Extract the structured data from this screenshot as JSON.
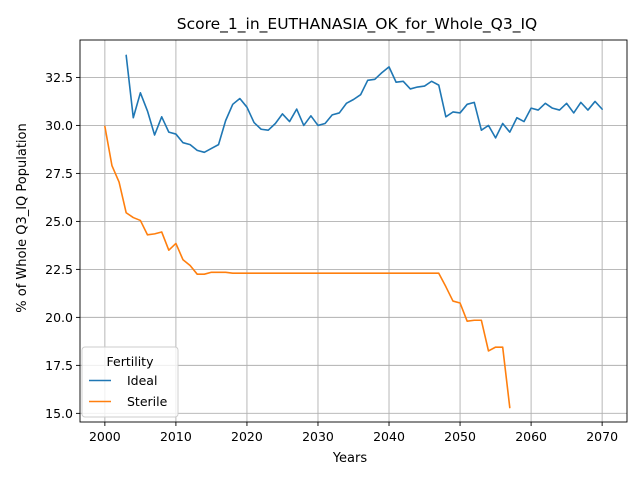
{
  "chart_data": {
    "type": "line",
    "title": "Score_1_in_EUTHANASIA_OK_for_Whole_Q3_IQ",
    "xlabel": "Years",
    "ylabel": "% of Whole Q3_IQ Population",
    "xlim": [
      1996.5,
      2073.5
    ],
    "ylim": [
      14.55,
      34.45
    ],
    "x_ticks": [
      2000,
      2010,
      2020,
      2030,
      2040,
      2050,
      2060,
      2070
    ],
    "y_ticks": [
      15.0,
      17.5,
      20.0,
      22.5,
      25.0,
      27.5,
      30.0,
      32.5
    ],
    "x_tick_labels": [
      "2000",
      "2010",
      "2020",
      "2030",
      "2040",
      "2050",
      "2060",
      "2070"
    ],
    "y_tick_labels": [
      "15.0",
      "17.5",
      "20.0",
      "22.5",
      "25.0",
      "27.5",
      "30.0",
      "32.5"
    ],
    "grid": true,
    "legend": {
      "title": "Fertility",
      "placement": "lower-left"
    },
    "series": [
      {
        "name": "Ideal",
        "color": "#1f77b4",
        "x": [
          2003,
          2004,
          2005,
          2006,
          2007,
          2008,
          2009,
          2010,
          2011,
          2012,
          2013,
          2014,
          2015,
          2016,
          2017,
          2018,
          2019,
          2020,
          2021,
          2022,
          2023,
          2024,
          2025,
          2026,
          2027,
          2028,
          2029,
          2030,
          2031,
          2032,
          2033,
          2034,
          2035,
          2036,
          2037,
          2038,
          2039,
          2040,
          2041,
          2042,
          2043,
          2044,
          2045,
          2046,
          2047,
          2048,
          2049,
          2050,
          2051,
          2052,
          2053,
          2054,
          2055,
          2056,
          2057,
          2058,
          2059,
          2060,
          2061,
          2062,
          2063,
          2064,
          2065,
          2066,
          2067,
          2068,
          2069,
          2070
        ],
        "y": [
          33.65,
          30.4,
          31.7,
          30.75,
          29.5,
          30.45,
          29.65,
          29.55,
          29.1,
          29.0,
          28.7,
          28.6,
          28.8,
          29.0,
          30.25,
          31.1,
          31.4,
          30.95,
          30.15,
          29.8,
          29.75,
          30.1,
          30.6,
          30.2,
          30.85,
          30.0,
          30.5,
          30.0,
          30.1,
          30.55,
          30.65,
          31.15,
          31.35,
          31.6,
          32.35,
          32.4,
          32.75,
          33.05,
          32.25,
          32.3,
          31.9,
          32.0,
          32.05,
          32.3,
          32.1,
          30.45,
          30.7,
          30.65,
          31.1,
          31.2,
          29.75,
          30.0,
          29.35,
          30.1,
          29.65,
          30.4,
          30.2,
          30.9,
          30.8,
          31.15,
          30.9,
          30.8,
          31.15,
          30.65,
          31.2,
          30.8,
          31.25,
          30.85
        ]
      },
      {
        "name": "Sterile",
        "color": "#ff7f0e",
        "x": [
          2000,
          2001,
          2002,
          2003,
          2004,
          2005,
          2006,
          2007,
          2008,
          2009,
          2010,
          2011,
          2012,
          2013,
          2014,
          2015,
          2016,
          2017,
          2018,
          2019,
          2020,
          2021,
          2022,
          2023,
          2024,
          2025,
          2026,
          2027,
          2028,
          2029,
          2030,
          2031,
          2032,
          2033,
          2034,
          2035,
          2036,
          2037,
          2038,
          2039,
          2040,
          2041,
          2042,
          2043,
          2044,
          2045,
          2046,
          2047,
          2048,
          2049,
          2050,
          2051,
          2052,
          2053,
          2054,
          2055,
          2056,
          2057
        ],
        "y": [
          29.95,
          27.9,
          27.05,
          25.45,
          25.2,
          25.05,
          24.3,
          24.35,
          24.45,
          23.5,
          23.85,
          23.0,
          22.7,
          22.25,
          22.25,
          22.35,
          22.35,
          22.35,
          22.3,
          22.3,
          22.3,
          22.3,
          22.3,
          22.3,
          22.3,
          22.3,
          22.3,
          22.3,
          22.3,
          22.3,
          22.3,
          22.3,
          22.3,
          22.3,
          22.3,
          22.3,
          22.3,
          22.3,
          22.3,
          22.3,
          22.3,
          22.3,
          22.3,
          22.3,
          22.3,
          22.3,
          22.3,
          22.3,
          21.6,
          20.85,
          20.75,
          19.8,
          19.85,
          19.85,
          18.25,
          18.45,
          18.45,
          15.3
        ]
      }
    ]
  }
}
